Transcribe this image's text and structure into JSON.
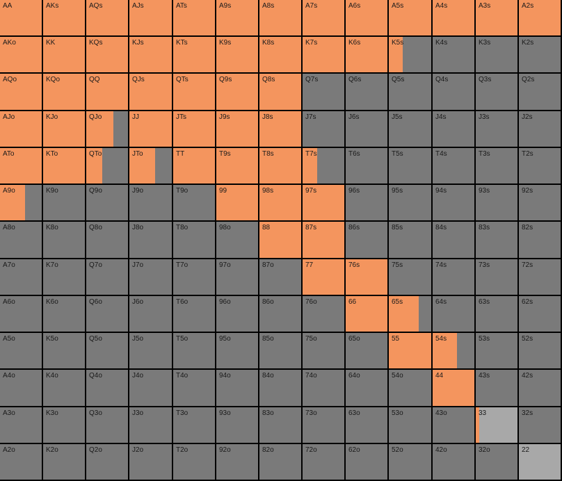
{
  "chart_data": {
    "type": "table",
    "title": "",
    "legend": [],
    "colors": {
      "raise": "#F4955E",
      "fold": "#7A7A7A",
      "neutral": "#A8A8A8",
      "label": "#1A1A1A"
    },
    "ranks": [
      "A",
      "K",
      "Q",
      "J",
      "T",
      "9",
      "8",
      "7",
      "6",
      "5",
      "4",
      "3",
      "2"
    ],
    "rows": [
      {
        "cells": [
          {
            "hand": "AA",
            "raise_fraction": 1.0
          },
          {
            "hand": "AKs",
            "raise_fraction": 1.0
          },
          {
            "hand": "AQs",
            "raise_fraction": 1.0
          },
          {
            "hand": "AJs",
            "raise_fraction": 1.0
          },
          {
            "hand": "ATs",
            "raise_fraction": 1.0
          },
          {
            "hand": "A9s",
            "raise_fraction": 1.0
          },
          {
            "hand": "A8s",
            "raise_fraction": 1.0
          },
          {
            "hand": "A7s",
            "raise_fraction": 1.0
          },
          {
            "hand": "A6s",
            "raise_fraction": 1.0
          },
          {
            "hand": "A5s",
            "raise_fraction": 1.0
          },
          {
            "hand": "A4s",
            "raise_fraction": 1.0
          },
          {
            "hand": "A3s",
            "raise_fraction": 1.0
          },
          {
            "hand": "A2s",
            "raise_fraction": 1.0
          }
        ]
      },
      {
        "cells": [
          {
            "hand": "AKo",
            "raise_fraction": 1.0
          },
          {
            "hand": "KK",
            "raise_fraction": 1.0
          },
          {
            "hand": "KQs",
            "raise_fraction": 1.0
          },
          {
            "hand": "KJs",
            "raise_fraction": 1.0
          },
          {
            "hand": "KTs",
            "raise_fraction": 1.0
          },
          {
            "hand": "K9s",
            "raise_fraction": 1.0
          },
          {
            "hand": "K8s",
            "raise_fraction": 1.0
          },
          {
            "hand": "K7s",
            "raise_fraction": 1.0
          },
          {
            "hand": "K6s",
            "raise_fraction": 1.0
          },
          {
            "hand": "K5s",
            "raise_fraction": 0.33
          },
          {
            "hand": "K4s",
            "raise_fraction": 0.0
          },
          {
            "hand": "K3s",
            "raise_fraction": 0.0
          },
          {
            "hand": "K2s",
            "raise_fraction": 0.0
          }
        ]
      },
      {
        "cells": [
          {
            "hand": "AQo",
            "raise_fraction": 1.0
          },
          {
            "hand": "KQo",
            "raise_fraction": 1.0
          },
          {
            "hand": "QQ",
            "raise_fraction": 1.0
          },
          {
            "hand": "QJs",
            "raise_fraction": 1.0
          },
          {
            "hand": "QTs",
            "raise_fraction": 1.0
          },
          {
            "hand": "Q9s",
            "raise_fraction": 1.0
          },
          {
            "hand": "Q8s",
            "raise_fraction": 1.0
          },
          {
            "hand": "Q7s",
            "raise_fraction": 0.0
          },
          {
            "hand": "Q6s",
            "raise_fraction": 0.0
          },
          {
            "hand": "Q5s",
            "raise_fraction": 0.0
          },
          {
            "hand": "Q4s",
            "raise_fraction": 0.0
          },
          {
            "hand": "Q3s",
            "raise_fraction": 0.0
          },
          {
            "hand": "Q2s",
            "raise_fraction": 0.0
          }
        ]
      },
      {
        "cells": [
          {
            "hand": "AJo",
            "raise_fraction": 1.0
          },
          {
            "hand": "KJo",
            "raise_fraction": 1.0
          },
          {
            "hand": "QJo",
            "raise_fraction": 0.65
          },
          {
            "hand": "JJ",
            "raise_fraction": 1.0
          },
          {
            "hand": "JTs",
            "raise_fraction": 1.0
          },
          {
            "hand": "J9s",
            "raise_fraction": 1.0
          },
          {
            "hand": "J8s",
            "raise_fraction": 1.0
          },
          {
            "hand": "J7s",
            "raise_fraction": 0.0
          },
          {
            "hand": "J6s",
            "raise_fraction": 0.0
          },
          {
            "hand": "J5s",
            "raise_fraction": 0.0
          },
          {
            "hand": "J4s",
            "raise_fraction": 0.0
          },
          {
            "hand": "J3s",
            "raise_fraction": 0.0
          },
          {
            "hand": "J2s",
            "raise_fraction": 0.0
          }
        ]
      },
      {
        "cells": [
          {
            "hand": "ATo",
            "raise_fraction": 1.0
          },
          {
            "hand": "KTo",
            "raise_fraction": 1.0
          },
          {
            "hand": "QTo",
            "raise_fraction": 0.38
          },
          {
            "hand": "JTo",
            "raise_fraction": 0.6
          },
          {
            "hand": "TT",
            "raise_fraction": 1.0
          },
          {
            "hand": "T9s",
            "raise_fraction": 1.0
          },
          {
            "hand": "T8s",
            "raise_fraction": 1.0
          },
          {
            "hand": "T7s",
            "raise_fraction": 0.35
          },
          {
            "hand": "T6s",
            "raise_fraction": 0.0
          },
          {
            "hand": "T5s",
            "raise_fraction": 0.0
          },
          {
            "hand": "T4s",
            "raise_fraction": 0.0
          },
          {
            "hand": "T3s",
            "raise_fraction": 0.0
          },
          {
            "hand": "T2s",
            "raise_fraction": 0.0
          }
        ]
      },
      {
        "cells": [
          {
            "hand": "A9o",
            "raise_fraction": 0.6
          },
          {
            "hand": "K9o",
            "raise_fraction": 0.0
          },
          {
            "hand": "Q9o",
            "raise_fraction": 0.0
          },
          {
            "hand": "J9o",
            "raise_fraction": 0.0
          },
          {
            "hand": "T9o",
            "raise_fraction": 0.0
          },
          {
            "hand": "99",
            "raise_fraction": 1.0
          },
          {
            "hand": "98s",
            "raise_fraction": 1.0
          },
          {
            "hand": "97s",
            "raise_fraction": 1.0
          },
          {
            "hand": "96s",
            "raise_fraction": 0.0
          },
          {
            "hand": "95s",
            "raise_fraction": 0.0
          },
          {
            "hand": "94s",
            "raise_fraction": 0.0
          },
          {
            "hand": "93s",
            "raise_fraction": 0.0
          },
          {
            "hand": "92s",
            "raise_fraction": 0.0
          }
        ]
      },
      {
        "cells": [
          {
            "hand": "A8o",
            "raise_fraction": 0.0
          },
          {
            "hand": "K8o",
            "raise_fraction": 0.0
          },
          {
            "hand": "Q8o",
            "raise_fraction": 0.0
          },
          {
            "hand": "J8o",
            "raise_fraction": 0.0
          },
          {
            "hand": "T8o",
            "raise_fraction": 0.0
          },
          {
            "hand": "98o",
            "raise_fraction": 0.0
          },
          {
            "hand": "88",
            "raise_fraction": 1.0
          },
          {
            "hand": "87s",
            "raise_fraction": 1.0
          },
          {
            "hand": "86s",
            "raise_fraction": 0.0
          },
          {
            "hand": "85s",
            "raise_fraction": 0.0
          },
          {
            "hand": "84s",
            "raise_fraction": 0.0
          },
          {
            "hand": "83s",
            "raise_fraction": 0.0
          },
          {
            "hand": "82s",
            "raise_fraction": 0.0
          }
        ]
      },
      {
        "cells": [
          {
            "hand": "A7o",
            "raise_fraction": 0.0
          },
          {
            "hand": "K7o",
            "raise_fraction": 0.0
          },
          {
            "hand": "Q7o",
            "raise_fraction": 0.0
          },
          {
            "hand": "J7o",
            "raise_fraction": 0.0
          },
          {
            "hand": "T7o",
            "raise_fraction": 0.0
          },
          {
            "hand": "97o",
            "raise_fraction": 0.0
          },
          {
            "hand": "87o",
            "raise_fraction": 0.0
          },
          {
            "hand": "77",
            "raise_fraction": 1.0
          },
          {
            "hand": "76s",
            "raise_fraction": 1.0
          },
          {
            "hand": "75s",
            "raise_fraction": 0.0
          },
          {
            "hand": "74s",
            "raise_fraction": 0.0
          },
          {
            "hand": "73s",
            "raise_fraction": 0.0
          },
          {
            "hand": "72s",
            "raise_fraction": 0.0
          }
        ]
      },
      {
        "cells": [
          {
            "hand": "A6o",
            "raise_fraction": 0.0
          },
          {
            "hand": "K6o",
            "raise_fraction": 0.0
          },
          {
            "hand": "Q6o",
            "raise_fraction": 0.0
          },
          {
            "hand": "J6o",
            "raise_fraction": 0.0
          },
          {
            "hand": "T6o",
            "raise_fraction": 0.0
          },
          {
            "hand": "96o",
            "raise_fraction": 0.0
          },
          {
            "hand": "86o",
            "raise_fraction": 0.0
          },
          {
            "hand": "76o",
            "raise_fraction": 0.0
          },
          {
            "hand": "66",
            "raise_fraction": 1.0
          },
          {
            "hand": "65s",
            "raise_fraction": 0.7
          },
          {
            "hand": "64s",
            "raise_fraction": 0.0
          },
          {
            "hand": "63s",
            "raise_fraction": 0.0
          },
          {
            "hand": "62s",
            "raise_fraction": 0.0
          }
        ]
      },
      {
        "cells": [
          {
            "hand": "A5o",
            "raise_fraction": 0.0
          },
          {
            "hand": "K5o",
            "raise_fraction": 0.0
          },
          {
            "hand": "Q5o",
            "raise_fraction": 0.0
          },
          {
            "hand": "J5o",
            "raise_fraction": 0.0
          },
          {
            "hand": "T5o",
            "raise_fraction": 0.0
          },
          {
            "hand": "95o",
            "raise_fraction": 0.0
          },
          {
            "hand": "85o",
            "raise_fraction": 0.0
          },
          {
            "hand": "75o",
            "raise_fraction": 0.0
          },
          {
            "hand": "65o",
            "raise_fraction": 0.0
          },
          {
            "hand": "55",
            "raise_fraction": 1.0
          },
          {
            "hand": "54s",
            "raise_fraction": 0.58
          },
          {
            "hand": "53s",
            "raise_fraction": 0.0
          },
          {
            "hand": "52s",
            "raise_fraction": 0.0
          }
        ]
      },
      {
        "cells": [
          {
            "hand": "A4o",
            "raise_fraction": 0.0
          },
          {
            "hand": "K4o",
            "raise_fraction": 0.0
          },
          {
            "hand": "Q4o",
            "raise_fraction": 0.0
          },
          {
            "hand": "J4o",
            "raise_fraction": 0.0
          },
          {
            "hand": "T4o",
            "raise_fraction": 0.0
          },
          {
            "hand": "94o",
            "raise_fraction": 0.0
          },
          {
            "hand": "84o",
            "raise_fraction": 0.0
          },
          {
            "hand": "74o",
            "raise_fraction": 0.0
          },
          {
            "hand": "64o",
            "raise_fraction": 0.0
          },
          {
            "hand": "54o",
            "raise_fraction": 0.0
          },
          {
            "hand": "44",
            "raise_fraction": 1.0
          },
          {
            "hand": "43s",
            "raise_fraction": 0.0
          },
          {
            "hand": "42s",
            "raise_fraction": 0.0
          }
        ]
      },
      {
        "cells": [
          {
            "hand": "A3o",
            "raise_fraction": 0.0
          },
          {
            "hand": "K3o",
            "raise_fraction": 0.0
          },
          {
            "hand": "Q3o",
            "raise_fraction": 0.0
          },
          {
            "hand": "J3o",
            "raise_fraction": 0.0
          },
          {
            "hand": "T3o",
            "raise_fraction": 0.0
          },
          {
            "hand": "93o",
            "raise_fraction": 0.0
          },
          {
            "hand": "83o",
            "raise_fraction": 0.0
          },
          {
            "hand": "73o",
            "raise_fraction": 0.0
          },
          {
            "hand": "63o",
            "raise_fraction": 0.0
          },
          {
            "hand": "53o",
            "raise_fraction": 0.0
          },
          {
            "hand": "43o",
            "raise_fraction": 0.0
          },
          {
            "hand": "33",
            "raise_fraction": 0.08,
            "base": "neutral"
          },
          {
            "hand": "32s",
            "raise_fraction": 0.0
          }
        ]
      },
      {
        "cells": [
          {
            "hand": "A2o",
            "raise_fraction": 0.0
          },
          {
            "hand": "K2o",
            "raise_fraction": 0.0
          },
          {
            "hand": "Q2o",
            "raise_fraction": 0.0
          },
          {
            "hand": "J2o",
            "raise_fraction": 0.0
          },
          {
            "hand": "T2o",
            "raise_fraction": 0.0
          },
          {
            "hand": "92o",
            "raise_fraction": 0.0
          },
          {
            "hand": "82o",
            "raise_fraction": 0.0
          },
          {
            "hand": "72o",
            "raise_fraction": 0.0
          },
          {
            "hand": "62o",
            "raise_fraction": 0.0
          },
          {
            "hand": "52o",
            "raise_fraction": 0.0
          },
          {
            "hand": "42o",
            "raise_fraction": 0.0
          },
          {
            "hand": "32o",
            "raise_fraction": 0.0
          },
          {
            "hand": "22",
            "raise_fraction": 0.0,
            "base": "neutral"
          }
        ]
      }
    ]
  }
}
